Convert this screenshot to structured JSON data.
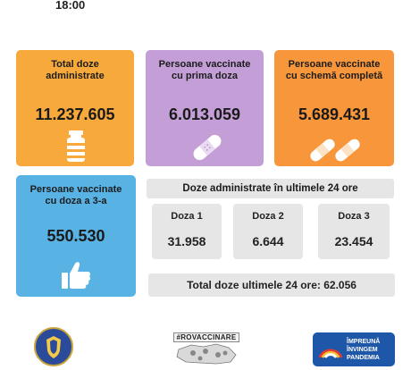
{
  "time": "18:00",
  "cards": {
    "total_doze": {
      "title": "Total doze administrate",
      "value": "11.237.605",
      "icon": "vial-icon",
      "color": "#f7a93b"
    },
    "prima_doza": {
      "title": "Persoane vaccinate cu prima doza",
      "value": "6.013.059",
      "icon": "bandage-icon",
      "color": "#c49ed6"
    },
    "schema_completa": {
      "title": "Persoane vaccinate cu schemă completă",
      "value": "5.689.431",
      "icon": "bandages-icon",
      "color": "#f7963a"
    },
    "doza_3": {
      "title": "Persoane vaccinate cu doza a 3-a",
      "value": "550.530",
      "icon": "thumbs-up-icon",
      "color": "#59b2e4"
    }
  },
  "last24": {
    "title": "Doze administrate în ultimele 24 ore",
    "doses": [
      {
        "label": "Doza 1",
        "value": "31.958"
      },
      {
        "label": "Doza 2",
        "value": "6.644"
      },
      {
        "label": "Doza 3",
        "value": "23.454"
      }
    ],
    "total": "Total doze ultimele 24 ore: 62.056"
  },
  "footer": {
    "rovaccinare": "#ROVACCINARE",
    "impreuna": [
      "ÎMPREUNĂ",
      "ÎNVINGEM",
      "PANDEMIA"
    ]
  }
}
